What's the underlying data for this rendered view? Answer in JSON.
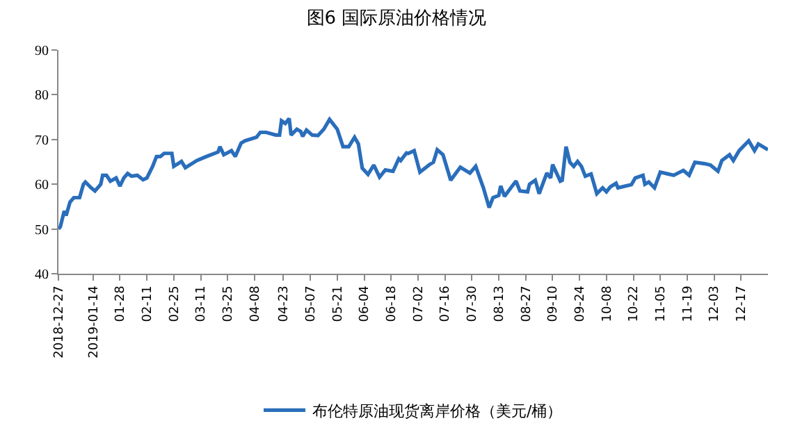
{
  "chart_data": {
    "type": "line",
    "title": "图6 国际原油价格情况",
    "x": [
      "2018-12-27",
      "2018-12-28",
      "2018-12-30",
      "2018-12-31",
      "2019-01-02",
      "2019-01-04",
      "2019-01-07",
      "2019-01-09",
      "2019-01-10",
      "2019-01-13",
      "2019-01-15",
      "2019-01-18",
      "2019-01-19",
      "2019-01-21",
      "2019-01-23",
      "2019-01-26",
      "2019-01-28",
      "2019-01-30",
      "2019-02-01",
      "2019-02-03",
      "2019-02-06",
      "2019-02-09",
      "2019-02-11",
      "2019-02-14",
      "2019-02-16",
      "2019-02-18",
      "2019-02-20",
      "2019-02-24",
      "2019-02-25",
      "2019-03-01",
      "2019-03-03",
      "2019-03-09",
      "2019-03-14",
      "2019-03-20",
      "2019-03-21",
      "2019-03-23",
      "2019-03-27",
      "2019-03-29",
      "2019-04-01",
      "2019-04-03",
      "2019-04-09",
      "2019-04-11",
      "2019-04-14",
      "2019-04-19",
      "2019-04-21",
      "2019-04-22",
      "2019-04-24",
      "2019-04-26",
      "2019-04-27",
      "2019-04-30",
      "2019-05-02",
      "2019-05-03",
      "2019-05-05",
      "2019-05-08",
      "2019-05-11",
      "2019-05-14",
      "2019-05-17",
      "2019-05-21",
      "2019-05-24",
      "2019-05-27",
      "2019-05-30",
      "2019-06-01",
      "2019-06-03",
      "2019-06-06",
      "2019-06-09",
      "2019-06-12",
      "2019-06-15",
      "2019-06-19",
      "2019-06-22",
      "2019-06-23",
      "2019-06-26",
      "2019-06-27",
      "2019-06-30",
      "2019-07-03",
      "2019-07-08",
      "2019-07-10",
      "2019-07-12",
      "2019-07-15",
      "2019-07-19",
      "2019-07-24",
      "2019-07-29",
      "2019-08-01",
      "2019-08-05",
      "2019-08-08",
      "2019-08-10",
      "2019-08-13",
      "2019-08-14",
      "2019-08-16",
      "2019-08-20",
      "2019-08-22",
      "2019-08-24",
      "2019-08-28",
      "2019-08-29",
      "2019-09-01",
      "2019-09-03",
      "2019-09-07",
      "2019-09-09",
      "2019-09-10",
      "2019-09-14",
      "2019-09-15",
      "2019-09-17",
      "2019-09-19",
      "2019-09-21",
      "2019-09-23",
      "2019-09-25",
      "2019-09-27",
      "2019-09-30",
      "2019-10-03",
      "2019-10-06",
      "2019-10-08",
      "2019-10-10",
      "2019-10-13",
      "2019-10-14",
      "2019-10-21",
      "2019-10-23",
      "2019-10-27",
      "2019-10-28",
      "2019-10-30",
      "2019-11-02",
      "2019-11-05",
      "2019-11-09",
      "2019-11-12",
      "2019-11-17",
      "2019-11-20",
      "2019-11-23",
      "2019-11-28",
      "2019-12-01",
      "2019-12-05",
      "2019-12-07",
      "2019-12-11",
      "2019-12-13",
      "2019-12-16",
      "2019-12-21",
      "2019-12-24",
      "2019-12-26",
      "2019-12-31"
    ],
    "series": [
      {
        "name": "布伦特原油现货离岸价格（美元/桶）",
        "color": "#2a6ebb",
        "values": [
          50.0,
          50.5,
          54,
          53,
          56,
          57,
          57,
          60,
          60.5,
          59.2,
          58.5,
          60,
          62,
          62,
          60.7,
          61.4,
          59.6,
          61.4,
          62.4,
          61.8,
          62,
          61,
          61.4,
          64,
          66.2,
          66.2,
          66.9,
          66.9,
          64,
          65.1,
          63.7,
          65.3,
          66.2,
          67.2,
          68.4,
          66.6,
          67.5,
          66.2,
          69.2,
          69.7,
          70.5,
          71.6,
          71.6,
          71,
          71,
          74.2,
          73.6,
          74.7,
          71,
          72.3,
          71.8,
          70.7,
          72.1,
          71,
          70.9,
          72.3,
          74.5,
          72.3,
          68.4,
          68.4,
          70.5,
          69,
          63.6,
          62.2,
          64.3,
          61.6,
          63.2,
          62.9,
          65.7,
          65.3,
          67,
          66.9,
          67.5,
          62.7,
          64.4,
          64.9,
          67.7,
          66.6,
          60.9,
          63.8,
          62.5,
          64,
          59.2,
          54.8,
          57,
          57.5,
          59.6,
          57.3,
          59.6,
          60.7,
          58.5,
          58.3,
          60,
          60.9,
          57.9,
          62.5,
          61.4,
          64.4,
          60.7,
          60.9,
          68.4,
          64.9,
          64,
          65.1,
          64,
          61.8,
          62.3,
          57.9,
          59.2,
          58.3,
          59.4,
          60.2,
          59.2,
          59.9,
          61.4,
          62,
          60,
          60.5,
          59.2,
          62.7,
          62.3,
          62,
          63.1,
          62,
          64.9,
          64.6,
          64.3,
          62.9,
          65.3,
          66.6,
          65.3,
          67.5,
          69.7,
          67.5,
          69,
          67.7
        ]
      }
    ],
    "xlim": [
      "2018-12-27",
      "2019-12-31"
    ],
    "xticks": [
      {
        "value": "2018-12-27",
        "label": "2018-12-27"
      },
      {
        "value": "2019-01-14",
        "label": "2019-01-14"
      },
      {
        "value": "2019-01-28",
        "label": "01-28"
      },
      {
        "value": "2019-02-11",
        "label": "02-11"
      },
      {
        "value": "2019-02-25",
        "label": "02-25"
      },
      {
        "value": "2019-03-11",
        "label": "03-11"
      },
      {
        "value": "2019-03-25",
        "label": "03-25"
      },
      {
        "value": "2019-04-08",
        "label": "04-08"
      },
      {
        "value": "2019-04-23",
        "label": "04-23"
      },
      {
        "value": "2019-05-07",
        "label": "05-07"
      },
      {
        "value": "2019-05-21",
        "label": "05-21"
      },
      {
        "value": "2019-06-04",
        "label": "06-04"
      },
      {
        "value": "2019-06-18",
        "label": "06-18"
      },
      {
        "value": "2019-07-02",
        "label": "07-02"
      },
      {
        "value": "2019-07-16",
        "label": "07-16"
      },
      {
        "value": "2019-07-30",
        "label": "07-30"
      },
      {
        "value": "2019-08-13",
        "label": "08-13"
      },
      {
        "value": "2019-08-27",
        "label": "08-27"
      },
      {
        "value": "2019-09-10",
        "label": "09-10"
      },
      {
        "value": "2019-09-24",
        "label": "09-24"
      },
      {
        "value": "2019-10-08",
        "label": "10-08"
      },
      {
        "value": "2019-10-22",
        "label": "10-22"
      },
      {
        "value": "2019-11-05",
        "label": "11-05"
      },
      {
        "value": "2019-11-19",
        "label": "11-19"
      },
      {
        "value": "2019-12-03",
        "label": "12-03"
      },
      {
        "value": "2019-12-17",
        "label": "12-17"
      }
    ],
    "ylim": [
      40,
      90
    ],
    "yticks": [
      40,
      50,
      60,
      70,
      80,
      90
    ],
    "grid": false,
    "legend": "bottom",
    "marker": "none",
    "line_style": "solid"
  }
}
